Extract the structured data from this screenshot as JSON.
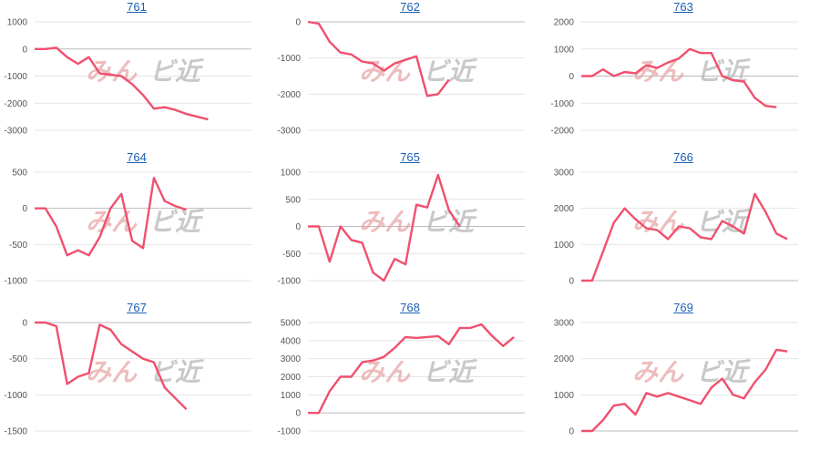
{
  "series_color": "#f0506e",
  "chart_data": [
    {
      "type": "line",
      "title": "761",
      "ylim": [
        -3000,
        1000
      ],
      "yticks": [
        1000,
        0,
        -1000,
        -2000,
        -3000
      ],
      "values": [
        0,
        0,
        50,
        -300,
        -550,
        -300,
        -900,
        -950,
        -1000,
        -1300,
        -1700,
        -2200,
        -2150,
        -2250,
        -2400,
        -2500,
        -2600
      ]
    },
    {
      "type": "line",
      "title": "762",
      "ylim": [
        -3000,
        0
      ],
      "yticks": [
        0,
        -1000,
        -2000,
        -3000
      ],
      "values": [
        0,
        -50,
        -550,
        -850,
        -900,
        -1100,
        -1150,
        -1350,
        -1150,
        -1050,
        -950,
        -2050,
        -2000,
        -1600,
        null,
        null,
        null,
        null,
        null,
        null
      ]
    },
    {
      "type": "line",
      "title": "763",
      "ylim": [
        -2000,
        2000
      ],
      "yticks": [
        2000,
        1000,
        0,
        -1000,
        -2000
      ],
      "values": [
        0,
        0,
        250,
        0,
        150,
        100,
        400,
        300,
        500,
        650,
        1000,
        850,
        850,
        0,
        -150,
        -200,
        -800,
        -1100,
        -1150
      ]
    },
    {
      "type": "line",
      "title": "764",
      "ylim": [
        -1000,
        500
      ],
      "yticks": [
        500,
        0,
        -500,
        -1000
      ],
      "values": [
        0,
        0,
        -250,
        -650,
        -580,
        -650,
        -400,
        0,
        200,
        -450,
        -550,
        420,
        100,
        30,
        -20
      ]
    },
    {
      "type": "line",
      "title": "765",
      "ylim": [
        -1000,
        1000
      ],
      "yticks": [
        1000,
        500,
        0,
        -500,
        -1000
      ],
      "values": [
        0,
        0,
        -650,
        0,
        -250,
        -300,
        -850,
        -1000,
        -600,
        -700,
        400,
        350,
        950,
        300,
        0
      ]
    },
    {
      "type": "line",
      "title": "766",
      "ylim": [
        0,
        3000
      ],
      "yticks": [
        3000,
        2000,
        1000,
        0
      ],
      "values": [
        0,
        0,
        800,
        1600,
        2000,
        1700,
        1450,
        1400,
        1150,
        1500,
        1450,
        1200,
        1150,
        1650,
        1500,
        1300,
        2400,
        1900,
        1300,
        1150
      ]
    },
    {
      "type": "line",
      "title": "767",
      "ylim": [
        -1500,
        0
      ],
      "yticks": [
        0,
        -500,
        -1000,
        -1500
      ],
      "values": [
        0,
        0,
        -50,
        -850,
        -750,
        -700,
        -30,
        -100,
        -300,
        -400,
        -500,
        -550,
        -900,
        -1050,
        -1200
      ]
    },
    {
      "type": "line",
      "title": "768",
      "ylim": [
        -1000,
        5000
      ],
      "yticks": [
        5000,
        4000,
        3000,
        2000,
        1000,
        0,
        -1000
      ],
      "values": [
        0,
        0,
        1200,
        2000,
        2000,
        2800,
        2900,
        3100,
        3600,
        4200,
        4150,
        4200,
        4250,
        3800,
        4700,
        4700,
        4900,
        4250,
        3700,
        4200
      ]
    },
    {
      "type": "line",
      "title": "769",
      "ylim": [
        0,
        3000
      ],
      "yticks": [
        3000,
        2000,
        1000,
        0
      ],
      "values": [
        0,
        0,
        300,
        700,
        750,
        450,
        1050,
        950,
        1050,
        950,
        850,
        750,
        1200,
        1450,
        1000,
        900,
        1350,
        1700,
        2250,
        2200
      ]
    }
  ],
  "watermark": {
    "part1": "みん",
    "part2": "ビ近"
  }
}
